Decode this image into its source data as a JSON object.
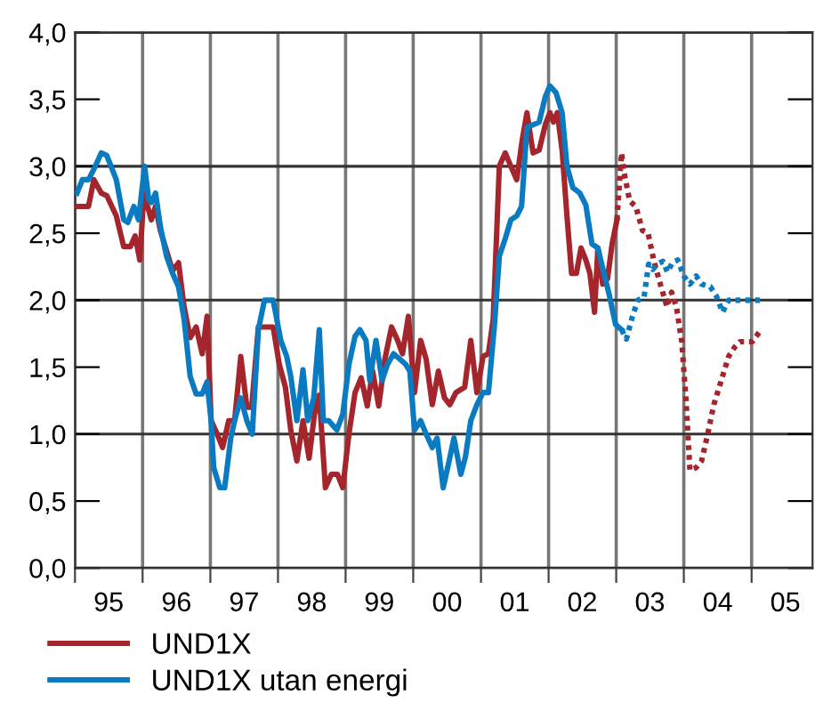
{
  "chart_data": {
    "type": "line",
    "xlim": [
      "1995-01-01",
      "2005-11-26"
    ],
    "ylim": [
      0,
      4
    ],
    "xticks": [
      {
        "value": "1995-01-01",
        "label": null
      },
      {
        "value": "1995-07-02",
        "label": "95"
      },
      {
        "value": "1996-01-01",
        "label": null
      },
      {
        "value": "1996-07-02",
        "label": "96"
      },
      {
        "value": "1997-01-01",
        "label": null
      },
      {
        "value": "1997-07-02",
        "label": "97"
      },
      {
        "value": "1998-01-01",
        "label": null
      },
      {
        "value": "1998-07-02",
        "label": "98"
      },
      {
        "value": "1999-01-01",
        "label": null
      },
      {
        "value": "1999-07-02",
        "label": "99"
      },
      {
        "value": "2000-01-01",
        "label": null
      },
      {
        "value": "2000-07-02",
        "label": "00"
      },
      {
        "value": "2001-01-01",
        "label": null
      },
      {
        "value": "2001-07-02",
        "label": "01"
      },
      {
        "value": "2002-01-01",
        "label": null
      },
      {
        "value": "2002-07-02",
        "label": "02"
      },
      {
        "value": "2003-01-01",
        "label": null
      },
      {
        "value": "2003-07-02",
        "label": "03"
      },
      {
        "value": "2004-01-01",
        "label": null
      },
      {
        "value": "2004-07-02",
        "label": "04"
      },
      {
        "value": "2005-01-01",
        "label": null
      },
      {
        "value": "2005-07-02",
        "label": "05"
      }
    ],
    "yticks": [
      {
        "value": 0,
        "label": "0,0"
      },
      {
        "value": 0.5,
        "label": "0,5"
      },
      {
        "value": 1,
        "label": "1,0"
      },
      {
        "value": 1.5,
        "label": "1,5"
      },
      {
        "value": 2,
        "label": "2,0"
      },
      {
        "value": 2.5,
        "label": "2,5"
      },
      {
        "value": 3,
        "label": "3,0"
      },
      {
        "value": 3.5,
        "label": "3,5"
      },
      {
        "value": 4,
        "label": "4,0"
      }
    ],
    "grid": true,
    "legend": "bottom",
    "series": [
      {
        "name": "UND1X",
        "color": "#a4262c",
        "line_style": "solid",
        "x": [
          "1995-01-12",
          "1995-03-15",
          "1995-04-13",
          "1995-05-23",
          "1995-06-22",
          "1995-08-12",
          "1995-09-21",
          "1995-10-27",
          "1995-11-22",
          "1995-12-17",
          "1996-01-08",
          "1996-02-17",
          "1996-03-11",
          "1996-04-06",
          "1996-05-09",
          "1996-06-11",
          "1996-07-13",
          "1996-08-12",
          "1996-09-14",
          "1996-10-16",
          "1996-11-18",
          "1996-12-14",
          "1997-01-05",
          "1997-02-07",
          "1997-03-08",
          "1997-04-10",
          "1997-05-12",
          "1997-06-14",
          "1997-07-17",
          "1997-08-12",
          "1997-09-17",
          "1997-12-06",
          "1998-01-08",
          "1998-02-10",
          "1998-03-11",
          "1998-04-13",
          "1998-05-16",
          "1998-06-18",
          "1998-07-17",
          "1998-08-12",
          "1998-09-14",
          "1998-10-16",
          "1998-11-18",
          "1998-12-17",
          "1999-01-19",
          "1999-02-21",
          "1999-03-26",
          "1999-04-28",
          "1999-05-27",
          "1999-06-29",
          "1999-08-01",
          "1999-09-06",
          "1999-10-09",
          "1999-11-04",
          "1999-12-06",
          "2000-01-08",
          "2000-02-10",
          "2000-03-11",
          "2000-04-13",
          "2000-05-16",
          "2000-06-18",
          "2000-07-17",
          "2000-08-19",
          "2000-10-05",
          "2000-11-07",
          "2000-12-10",
          "2001-01-12",
          "2001-02-10",
          "2001-03-08",
          "2001-04-10",
          "2001-05-12",
          "2001-06-11",
          "2001-07-13",
          "2001-08-12",
          "2001-09-06",
          "2001-10-09",
          "2001-11-11",
          "2001-12-14",
          "2002-01-08",
          "2002-01-27",
          "2002-02-17",
          "2002-03-15",
          "2002-04-10",
          "2002-05-05",
          "2002-05-31",
          "2002-06-25",
          "2002-07-21",
          "2002-08-12",
          "2002-09-06",
          "2002-09-24",
          "2002-10-20",
          "2002-11-15",
          "2002-12-10",
          "2003-01-05"
        ],
        "values": [
          2.7,
          2.7,
          2.9,
          2.8,
          2.78,
          2.63,
          2.4,
          2.4,
          2.48,
          2.3,
          2.8,
          2.6,
          2.7,
          2.52,
          2.37,
          2.22,
          2.28,
          1.95,
          1.72,
          1.8,
          1.6,
          1.88,
          1.1,
          1.0,
          0.9,
          1.1,
          1.1,
          1.58,
          1.2,
          1.2,
          1.8,
          1.8,
          1.52,
          1.35,
          1.03,
          0.8,
          1.1,
          0.82,
          1.15,
          1.29,
          0.6,
          0.7,
          0.7,
          0.6,
          1.0,
          1.31,
          1.42,
          1.21,
          1.47,
          1.21,
          1.56,
          1.8,
          1.7,
          1.6,
          1.88,
          1.31,
          1.7,
          1.56,
          1.22,
          1.47,
          1.27,
          1.22,
          1.31,
          1.35,
          1.7,
          1.31,
          1.58,
          1.6,
          1.86,
          3.0,
          3.1,
          3.0,
          2.9,
          3.2,
          3.4,
          3.1,
          3.12,
          3.31,
          3.4,
          3.33,
          3.4,
          3.12,
          2.63,
          2.2,
          2.2,
          2.39,
          2.3,
          2.2,
          1.91,
          2.39,
          2.12,
          2.16,
          2.42,
          2.6
        ]
      },
      {
        "color": "#a4262c",
        "line_style": "dotted",
        "x": [
          "2003-01-05",
          "2003-01-30",
          "2003-02-10",
          "2003-03-15",
          "2003-04-17",
          "2003-05-23",
          "2003-06-22",
          "2003-07-24",
          "2003-08-23",
          "2003-10-02",
          "2003-10-27",
          "2003-11-22",
          "2003-12-21",
          "2004-01-12",
          "2004-02-03",
          "2004-03-08",
          "2004-04-06",
          "2004-05-09",
          "2004-06-11",
          "2004-07-10",
          "2004-08-30",
          "2004-10-02",
          "2004-10-31",
          "2005-01-05",
          "2005-02-21"
        ],
        "values": [
          2.6,
          3.1,
          2.97,
          2.74,
          2.7,
          2.52,
          2.5,
          2.29,
          2.14,
          1.95,
          2.06,
          1.95,
          1.69,
          1.27,
          0.73,
          0.75,
          0.8,
          1.0,
          1.22,
          1.35,
          1.58,
          1.65,
          1.69,
          1.69,
          1.78
        ]
      },
      {
        "name": "UND1X utan energi",
        "color": "#0a7bc1",
        "line_style": "solid",
        "x": [
          "1995-01-12",
          "1995-02-10",
          "1995-03-15",
          "1995-04-21",
          "1995-05-23",
          "1995-06-22",
          "1995-08-12",
          "1995-09-21",
          "1995-10-13",
          "1995-11-15",
          "1995-12-10",
          "1996-01-12",
          "1996-02-03",
          "1996-02-17",
          "1996-03-11",
          "1996-04-06",
          "1996-05-09",
          "1996-06-11",
          "1996-07-13",
          "1996-08-12",
          "1996-09-14",
          "1996-10-16",
          "1996-11-18",
          "1996-12-14",
          "1997-01-05",
          "1997-01-19",
          "1997-02-21",
          "1997-03-19",
          "1997-04-21",
          "1997-05-12",
          "1997-06-14",
          "1997-07-17",
          "1997-08-15",
          "1997-09-17",
          "1997-10-20",
          "1997-12-06",
          "1998-01-16",
          "1998-02-17",
          "1998-03-11",
          "1998-04-13",
          "1998-05-16",
          "1998-06-11",
          "1998-07-13",
          "1998-08-12",
          "1998-09-03",
          "1998-10-02",
          "1998-11-15",
          "1998-12-17",
          "1999-01-19",
          "1999-02-21",
          "1999-03-19",
          "1999-04-21",
          "1999-05-12",
          "1999-06-14",
          "1999-07-17",
          "1999-08-15",
          "1999-09-17",
          "1999-10-20",
          "1999-11-22",
          "1999-12-14",
          "2000-01-08",
          "2000-02-10",
          "2000-03-11",
          "2000-04-13",
          "2000-05-09",
          "2000-06-11",
          "2000-07-13",
          "2000-08-08",
          "2000-09-14",
          "2000-10-09",
          "2000-11-07",
          "2000-12-10",
          "2001-01-12",
          "2001-02-10",
          "2001-03-15",
          "2001-04-10",
          "2001-05-12",
          "2001-06-11",
          "2001-07-13",
          "2001-08-08",
          "2001-09-06",
          "2001-10-09",
          "2001-11-11",
          "2001-12-14",
          "2002-01-08",
          "2002-02-10",
          "2002-03-15",
          "2002-04-10",
          "2002-05-12",
          "2002-06-18",
          "2002-07-21",
          "2002-08-23",
          "2002-09-24",
          "2002-10-27",
          "2002-11-26",
          "2002-12-28",
          "2003-01-30"
        ],
        "values": [
          2.8,
          2.9,
          2.9,
          3.0,
          3.1,
          3.08,
          2.9,
          2.6,
          2.58,
          2.7,
          2.6,
          3.0,
          2.75,
          2.73,
          2.8,
          2.55,
          2.33,
          2.2,
          2.1,
          1.86,
          1.43,
          1.3,
          1.3,
          1.39,
          1.1,
          0.75,
          0.6,
          0.6,
          0.97,
          1.1,
          1.27,
          1.1,
          1.0,
          1.78,
          2.0,
          2.0,
          1.7,
          1.58,
          1.43,
          1.1,
          1.48,
          1.1,
          1.27,
          1.78,
          1.1,
          1.1,
          1.03,
          1.15,
          1.52,
          1.73,
          1.78,
          1.7,
          1.4,
          1.7,
          1.4,
          1.52,
          1.6,
          1.56,
          1.52,
          1.47,
          1.03,
          1.1,
          1.0,
          0.9,
          0.97,
          0.6,
          0.8,
          0.97,
          0.7,
          0.83,
          1.1,
          1.22,
          1.31,
          1.31,
          1.82,
          2.33,
          2.46,
          2.6,
          2.63,
          2.7,
          3.29,
          3.31,
          3.33,
          3.52,
          3.6,
          3.55,
          3.4,
          3.0,
          2.84,
          2.8,
          2.71,
          2.42,
          2.39,
          2.2,
          2.03,
          1.82,
          1.78
        ]
      },
      {
        "color": "#0a7bc1",
        "line_style": "dotted",
        "x": [
          "2003-01-30",
          "2003-02-25",
          "2003-03-30",
          "2003-04-28",
          "2003-05-31",
          "2003-06-25",
          "2003-07-17",
          "2003-08-12",
          "2003-09-10",
          "2003-10-05",
          "2003-10-31",
          "2003-11-29",
          "2004-01-01",
          "2004-02-03",
          "2004-03-08",
          "2004-04-06",
          "2004-05-23",
          "2004-06-25",
          "2004-07-28",
          "2004-08-30",
          "2004-10-16",
          "2005-03-04"
        ],
        "values": [
          1.78,
          1.71,
          1.88,
          2.0,
          2.02,
          2.27,
          2.23,
          2.27,
          2.29,
          2.21,
          2.28,
          2.3,
          2.18,
          2.12,
          2.18,
          2.12,
          2.1,
          2.03,
          1.91,
          2.0,
          2.0,
          2.0
        ]
      }
    ]
  }
}
